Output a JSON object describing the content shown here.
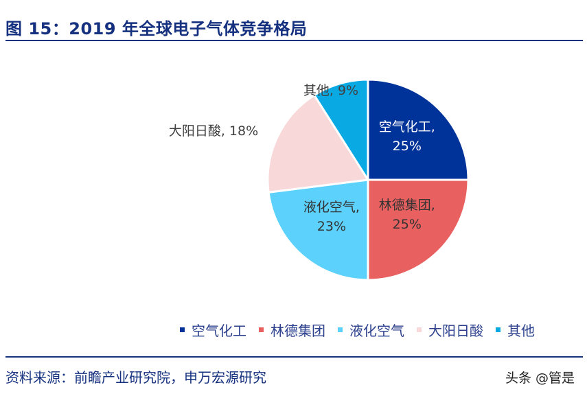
{
  "header": {
    "title": "图 15：2019 年全球电子气体竞争格局"
  },
  "footer": {
    "source": "资料来源：前瞻产业研究院，申万宏源研究"
  },
  "watermark": {
    "text": "头条 @管是"
  },
  "chart_data": {
    "type": "pie",
    "title": "",
    "series": [
      {
        "name": "空气化工",
        "value": 25,
        "label": "25%",
        "color": "#003399"
      },
      {
        "name": "林德集团",
        "value": 25,
        "label": "25%",
        "color": "#e8605f"
      },
      {
        "name": "液化空气",
        "value": 23,
        "label": "23%",
        "color": "#5bd1fb"
      },
      {
        "name": "大阳日酸",
        "value": 18,
        "label": "18%",
        "color": "#f8d8d8"
      },
      {
        "name": "其他",
        "value": 9,
        "label": "9%",
        "color": "#09aae4"
      }
    ],
    "legend": {
      "position": "bottom"
    }
  }
}
